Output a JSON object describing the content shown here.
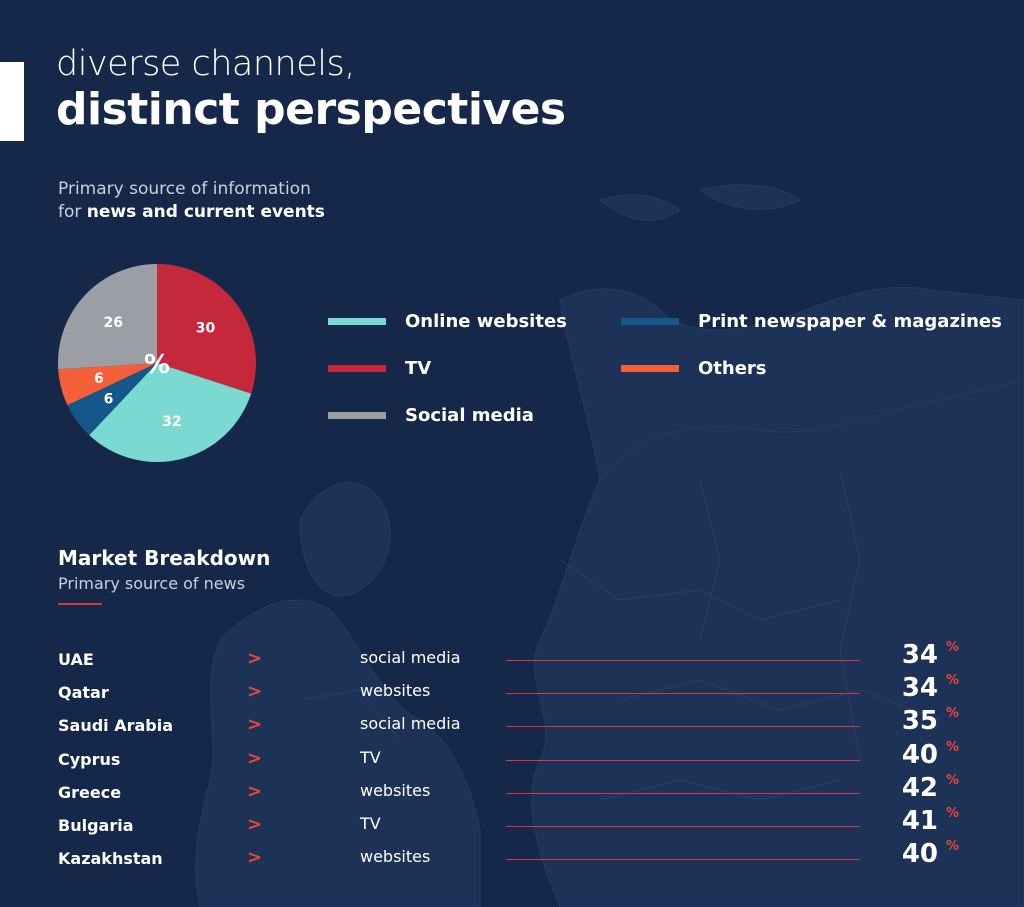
{
  "header": {
    "title_line1": "diverse channels,",
    "title_line2": "distinct perspectives"
  },
  "pie_section": {
    "subtitle_line1": "Primary source of information",
    "subtitle_line2_prefix": "for ",
    "subtitle_line2_bold": "news and current events",
    "center_label": "%"
  },
  "chart_data": [
    {
      "type": "pie",
      "title": "",
      "unit": "%",
      "slices": [
        {
          "label": "TV",
          "value": 30,
          "color": "#c5283a"
        },
        {
          "label": "Online websites",
          "value": 32,
          "color": "#7ad9d1"
        },
        {
          "label": "Print newspaper & magazines",
          "value": 6,
          "color": "#15578a"
        },
        {
          "label": "Others",
          "value": 6,
          "color": "#f45f3a"
        },
        {
          "label": "Social media",
          "value": 26,
          "color": "#9b9ea4"
        }
      ],
      "legend": [
        {
          "label": "Online websites",
          "color": "#7ad9d1"
        },
        {
          "label": "TV",
          "color": "#c5283a"
        },
        {
          "label": "Social media",
          "color": "#9b9ea4"
        },
        {
          "label": "Print newspaper & magazines",
          "color": "#15578a"
        },
        {
          "label": "Others",
          "color": "#f45f3a"
        }
      ],
      "legend_position": "right"
    },
    {
      "type": "table",
      "title": "Market Breakdown",
      "subtitle": "Primary source of news",
      "unit": "%",
      "rows": [
        {
          "country": "UAE",
          "source": "social media",
          "value": 34
        },
        {
          "country": "Qatar",
          "source": "websites",
          "value": 34
        },
        {
          "country": "Saudi Arabia",
          "source": "social media",
          "value": 35
        },
        {
          "country": "Cyprus",
          "source": "TV",
          "value": 40
        },
        {
          "country": "Greece",
          "source": "websites",
          "value": 42
        },
        {
          "country": "Bulgaria",
          "source": "TV",
          "value": 41
        },
        {
          "country": "Kazakhstan",
          "source": "websites",
          "value": 40
        }
      ]
    }
  ],
  "market": {
    "chevron": ">",
    "percent_sign": "%"
  },
  "colors": {
    "background": "#15284a",
    "accent": "#d23a3a"
  }
}
